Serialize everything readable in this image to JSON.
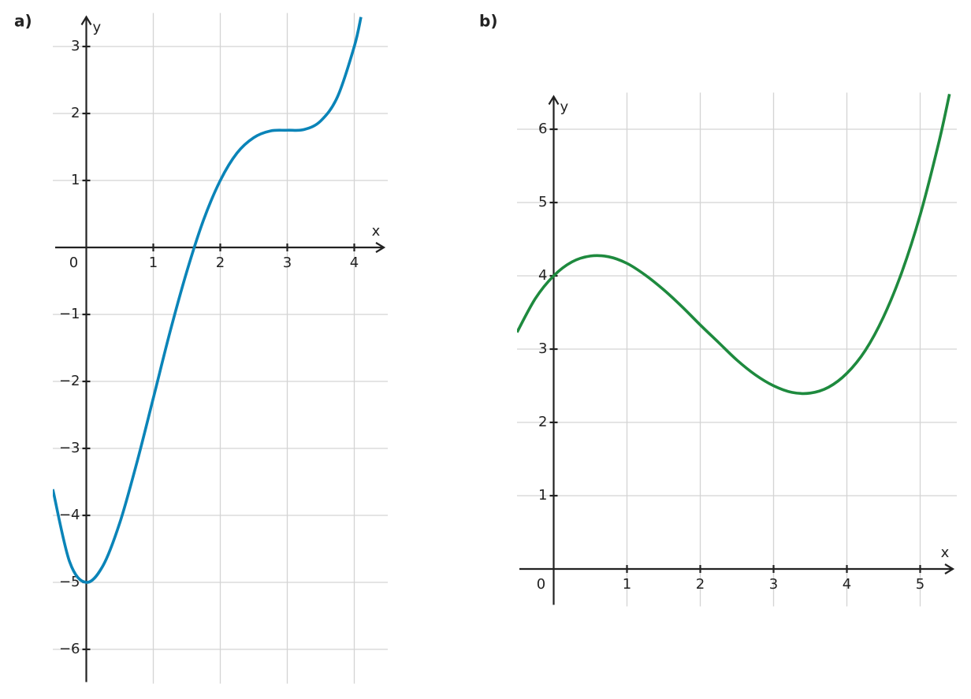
{
  "chart_data": [
    {
      "type": "line",
      "panel_label": "a)",
      "xlabel": "x",
      "ylabel": "y",
      "color": "#0a84b8",
      "xlim": [
        -0.5,
        4.5
      ],
      "ylim": [
        -6.5,
        3.5
      ],
      "xticks": [
        0,
        1,
        2,
        3,
        4
      ],
      "yticks": [
        {
          "value": -6,
          "label": "−6"
        },
        {
          "value": -5,
          "label": "−5"
        },
        {
          "value": -4,
          "label": "−4"
        },
        {
          "value": -3,
          "label": "−3"
        },
        {
          "value": -2,
          "label": "−2"
        },
        {
          "value": -1,
          "label": "−1"
        },
        1,
        2,
        3
      ],
      "grid": true,
      "x": [
        -0.5,
        -0.25,
        0,
        0.25,
        0.5,
        0.75,
        1,
        1.25,
        1.5,
        1.75,
        2,
        2.25,
        2.5,
        2.75,
        3,
        3.25,
        3.5,
        3.75,
        4,
        4.1
      ],
      "values": [
        -3.61,
        -4.69,
        -5,
        -4.75,
        -4.11,
        -3.23,
        -2.25,
        -1.26,
        -0.36,
        0.41,
        1,
        1.41,
        1.64,
        1.74,
        1.75,
        1.76,
        1.89,
        2.25,
        3,
        3.44
      ]
    },
    {
      "type": "line",
      "panel_label": "b)",
      "xlabel": "x",
      "ylabel": "y",
      "color": "#1e8a3e",
      "xlim": [
        -0.5,
        5.5
      ],
      "ylim": [
        -0.5,
        6.5
      ],
      "xticks": [
        0,
        1,
        2,
        3,
        4,
        5
      ],
      "yticks": [
        1,
        2,
        3,
        4,
        5,
        6
      ],
      "grid": true,
      "x": [
        -0.5,
        -0.25,
        0,
        0.25,
        0.5,
        0.75,
        1,
        1.25,
        1.5,
        1.75,
        2,
        2.25,
        2.5,
        2.75,
        3,
        3.25,
        3.5,
        3.75,
        4,
        4.25,
        4.5,
        4.75,
        5,
        5.25,
        5.4
      ],
      "values": [
        3.23,
        3.69,
        4,
        4.19,
        4.27,
        4.26,
        4.17,
        4.01,
        3.81,
        3.58,
        3.33,
        3.09,
        2.85,
        2.65,
        2.5,
        2.41,
        2.4,
        2.48,
        2.67,
        2.98,
        3.44,
        4.05,
        4.83,
        5.8,
        6.48
      ]
    }
  ]
}
